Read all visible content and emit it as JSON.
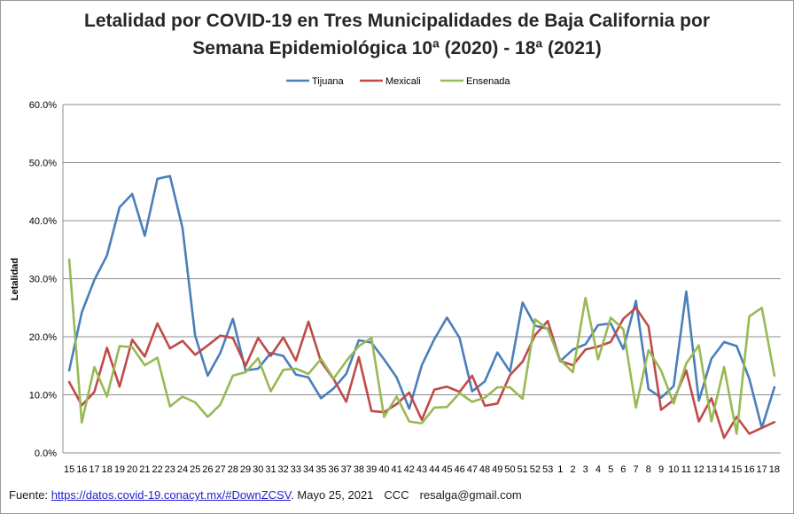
{
  "chart_data": {
    "type": "line",
    "title_line1": "Letalidad por COVID-19 en Tres Municipalidades de Baja California por",
    "title_line2": "Semana Epidemiológica 10ª (2020)  -  18ª (2021)",
    "ylabel": "Letalidad",
    "xlabel": "",
    "ylim": [
      0,
      60
    ],
    "yticks": [
      "0.0%",
      "10.0%",
      "20.0%",
      "30.0%",
      "40.0%",
      "50.0%",
      "60.0%"
    ],
    "grid_y": true,
    "legend_position": "top-center",
    "categories": [
      "15",
      "16",
      "17",
      "18",
      "19",
      "20",
      "21",
      "22",
      "23",
      "24",
      "25",
      "26",
      "27",
      "28",
      "29",
      "30",
      "31",
      "32",
      "33",
      "34",
      "35",
      "36",
      "37",
      "38",
      "39",
      "40",
      "41",
      "42",
      "43",
      "44",
      "45",
      "46",
      "47",
      "48",
      "49",
      "50",
      "51",
      "52",
      "53",
      "1",
      "2",
      "3",
      "4",
      "5",
      "6",
      "7",
      "8",
      "9",
      "10",
      "11",
      "12",
      "13",
      "14",
      "15",
      "16",
      "17",
      "18"
    ],
    "series": [
      {
        "name": "Tijuana",
        "color": "#4a7ebb",
        "values": [
          14.2,
          24.2,
          29.8,
          34.0,
          42.3,
          44.6,
          37.4,
          47.2,
          47.7,
          38.7,
          20.2,
          13.3,
          17.2,
          23.1,
          14.2,
          14.5,
          17.2,
          16.7,
          13.5,
          13.0,
          9.4,
          11.1,
          13.6,
          19.4,
          19.0,
          16.1,
          13.0,
          7.6,
          15.1,
          19.6,
          23.3,
          19.8,
          10.6,
          12.3,
          17.3,
          14.0,
          25.9,
          21.9,
          21.4,
          15.8,
          17.8,
          18.7,
          22.0,
          22.3,
          17.9,
          26.2,
          11.0,
          9.5,
          11.5,
          27.8,
          9.0,
          16.2,
          19.1,
          18.4,
          12.8,
          4.3,
          11.3
        ]
      },
      {
        "name": "Mexicali",
        "color": "#be4b48",
        "values": [
          12.2,
          8.2,
          10.5,
          18.1,
          11.4,
          19.5,
          16.6,
          22.3,
          18.0,
          19.3,
          16.9,
          18.5,
          20.2,
          19.8,
          15.0,
          19.8,
          16.7,
          19.9,
          15.9,
          22.6,
          15.7,
          12.7,
          8.8,
          16.5,
          7.2,
          7.0,
          8.4,
          10.4,
          5.7,
          10.9,
          11.4,
          10.5,
          13.3,
          8.1,
          8.5,
          13.4,
          15.7,
          20.3,
          22.7,
          15.8,
          15.1,
          17.8,
          18.3,
          19.1,
          23.1,
          25.0,
          21.8,
          7.4,
          9.1,
          14.2,
          5.4,
          9.4,
          2.6,
          6.2,
          3.3,
          4.3,
          5.3
        ]
      },
      {
        "name": "Ensenada",
        "color": "#98b954",
        "values": [
          33.3,
          5.2,
          14.8,
          9.7,
          18.4,
          18.2,
          15.1,
          16.4,
          8.0,
          9.7,
          8.7,
          6.2,
          8.3,
          13.3,
          13.9,
          16.3,
          10.6,
          14.3,
          14.5,
          13.6,
          16.2,
          12.8,
          15.8,
          18.4,
          19.8,
          6.2,
          9.7,
          5.4,
          5.1,
          7.8,
          7.9,
          10.3,
          8.8,
          9.5,
          11.3,
          11.3,
          9.3,
          23.0,
          21.3,
          16.0,
          13.9,
          26.7,
          16.1,
          23.3,
          21.3,
          7.8,
          17.7,
          14.2,
          8.5,
          15.4,
          18.5,
          5.4,
          14.8,
          3.3,
          23.5,
          25.0,
          13.3
        ]
      }
    ]
  },
  "footer": {
    "prefix": "Fuente:  ",
    "link_text": "https://datos.covid-19.conacyt.mx/#DownZCSV",
    "date_text": ". Mayo 25, 2021",
    "ccc": "CCC",
    "email": "resalga@gmail.com"
  }
}
